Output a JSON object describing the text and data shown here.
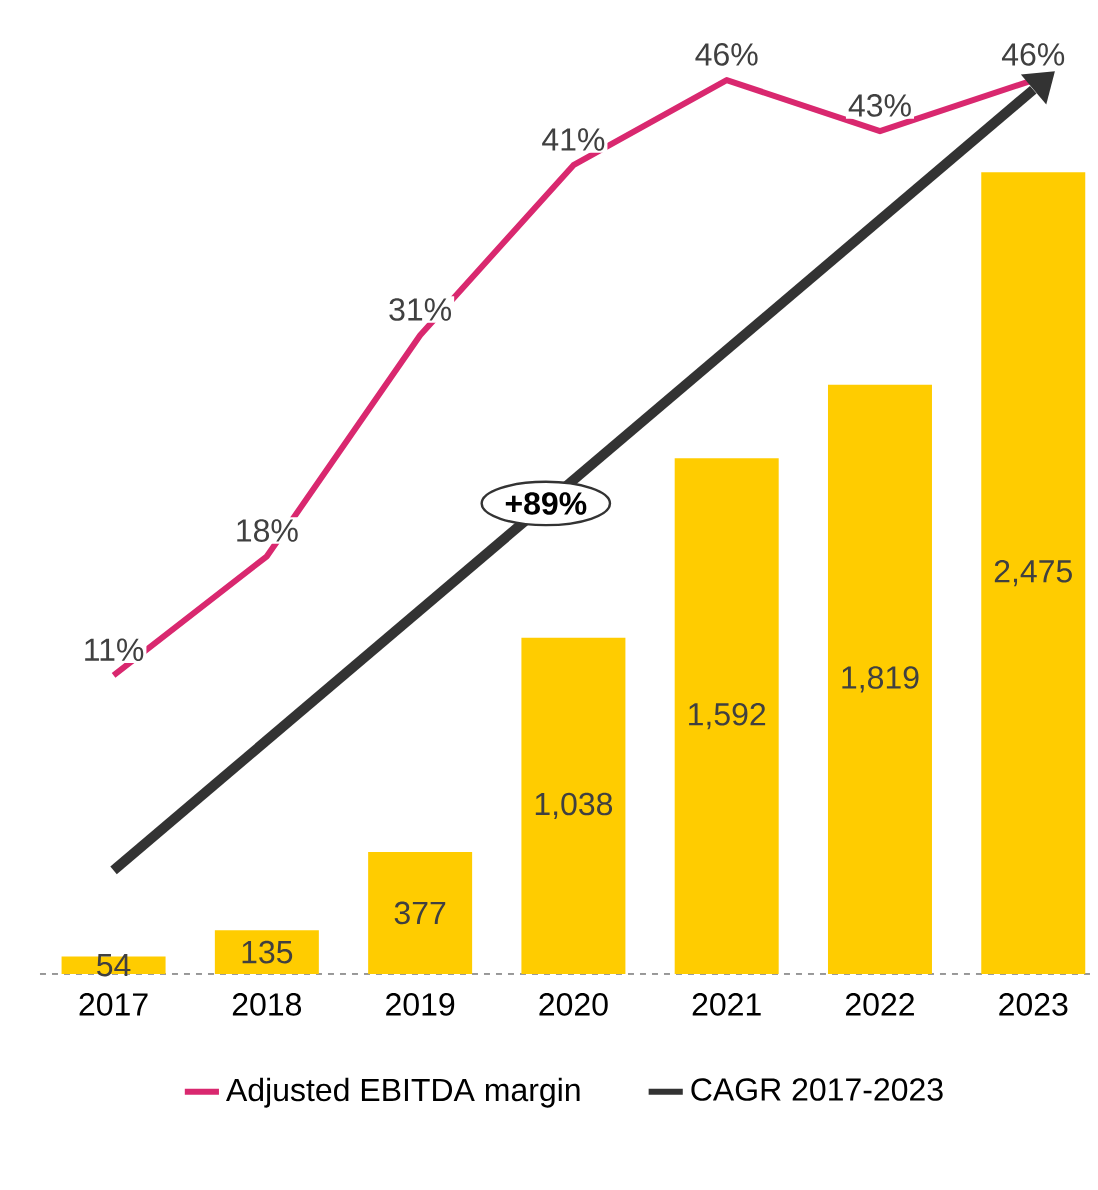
{
  "chart_data": {
    "type": "bar",
    "categories": [
      "2017",
      "2018",
      "2019",
      "2020",
      "2021",
      "2022",
      "2023"
    ],
    "series": [
      {
        "color": "#ffcc00",
        "values": [
          54,
          135,
          377,
          1038,
          1592,
          1819,
          2475
        ],
        "value_labels": [
          "54",
          "135",
          "377",
          "1,038",
          "1,592",
          "1,819",
          "2,475"
        ]
      },
      {
        "type": "line",
        "axis": "y2",
        "name": "Adjusted EBITDA margin",
        "color": "#d9286f",
        "values": [
          11,
          18,
          31,
          41,
          46,
          43,
          46
        ],
        "value_labels": [
          "11%",
          "18%",
          "31%",
          "41%",
          "46%",
          "43%",
          "46%"
        ]
      },
      {
        "type": "line",
        "name": "CAGR 2017-2023",
        "color": "#333333",
        "values": [
          320,
          null,
          null,
          null,
          null,
          null,
          2730
        ]
      }
    ],
    "annotations": [
      "+89%"
    ],
    "tick_labels": "x",
    "legend": "bottom",
    "grid": false
  }
}
